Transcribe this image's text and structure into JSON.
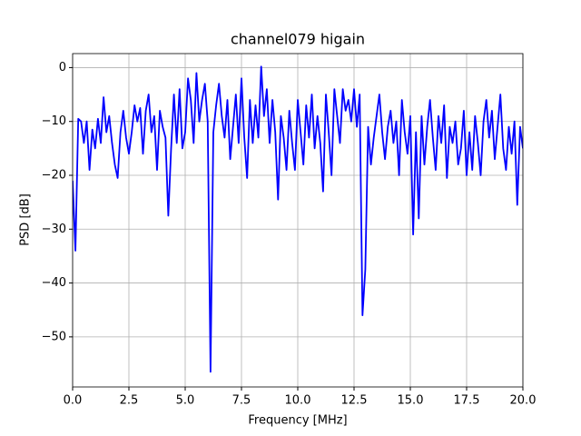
{
  "chart_data": {
    "type": "line",
    "title": "channel079 higain",
    "xlabel": "Frequency [MHz]",
    "ylabel": "PSD [dB]",
    "x": [
      0,
      0.125,
      0.25,
      0.375,
      0.5,
      0.625,
      0.75,
      0.875,
      1,
      1.125,
      1.25,
      1.375,
      1.5,
      1.625,
      1.75,
      1.875,
      2,
      2.125,
      2.25,
      2.375,
      2.5,
      2.625,
      2.75,
      2.875,
      3,
      3.125,
      3.25,
      3.375,
      3.5,
      3.625,
      3.75,
      3.875,
      4,
      4.125,
      4.25,
      4.375,
      4.5,
      4.625,
      4.75,
      4.875,
      5,
      5.125,
      5.25,
      5.375,
      5.5,
      5.625,
      5.75,
      5.875,
      6,
      6.125,
      6.25,
      6.375,
      6.5,
      6.625,
      6.75,
      6.875,
      7,
      7.125,
      7.25,
      7.375,
      7.5,
      7.625,
      7.75,
      7.875,
      8,
      8.125,
      8.25,
      8.375,
      8.5,
      8.625,
      8.75,
      8.875,
      9,
      9.125,
      9.25,
      9.375,
      9.5,
      9.625,
      9.75,
      9.875,
      10,
      10.125,
      10.25,
      10.375,
      10.5,
      10.625,
      10.75,
      10.875,
      11,
      11.125,
      11.25,
      11.375,
      11.5,
      11.625,
      11.75,
      11.875,
      12,
      12.125,
      12.25,
      12.375,
      12.5,
      12.625,
      12.75,
      12.875,
      13,
      13.125,
      13.25,
      13.375,
      13.5,
      13.625,
      13.75,
      13.875,
      14,
      14.125,
      14.25,
      14.375,
      14.5,
      14.625,
      14.75,
      14.875,
      15,
      15.125,
      15.25,
      15.375,
      15.5,
      15.625,
      15.75,
      15.875,
      16,
      16.125,
      16.25,
      16.375,
      16.5,
      16.625,
      16.75,
      16.875,
      17,
      17.125,
      17.25,
      17.375,
      17.5,
      17.625,
      17.75,
      17.875,
      18,
      18.125,
      18.25,
      18.375,
      18.5,
      18.625,
      18.75,
      18.875,
      19,
      19.125,
      19.25,
      19.375,
      19.5,
      19.625,
      19.75,
      19.875,
      20
    ],
    "series": [
      {
        "name": "PSD",
        "color": "#0000ff",
        "values": [
          -21,
          -34,
          -9.5,
          -10,
          -14,
          -10,
          -19,
          -11.5,
          -15,
          -9.5,
          -14,
          -5.5,
          -12,
          -9,
          -14,
          -18,
          -20.5,
          -12,
          -8,
          -13,
          -16,
          -12,
          -7,
          -10,
          -7.5,
          -16,
          -8,
          -5,
          -12,
          -9,
          -19,
          -8,
          -11,
          -13,
          -27.5,
          -15,
          -5,
          -14,
          -4,
          -15,
          -12,
          -2,
          -6,
          -14,
          -1,
          -10,
          -6,
          -3,
          -10,
          -56.5,
          -12,
          -7,
          -3,
          -9,
          -13,
          -6,
          -17,
          -11,
          -5,
          -14,
          -2,
          -13,
          -20.5,
          -6,
          -14,
          -7,
          -13,
          0.2,
          -9,
          -4,
          -14,
          -6,
          -12,
          -24.5,
          -9,
          -13,
          -19,
          -8,
          -14,
          -19,
          -6,
          -12,
          -18,
          -7,
          -13,
          -5,
          -15,
          -9,
          -14,
          -23,
          -5,
          -12,
          -20,
          -4,
          -9,
          -14,
          -4,
          -8,
          -6,
          -10,
          -4,
          -11,
          -5,
          -46,
          -37.5,
          -11,
          -18,
          -13,
          -9,
          -5,
          -12,
          -17,
          -11,
          -8,
          -14,
          -10,
          -20,
          -6,
          -12,
          -16,
          -9,
          -31,
          -12,
          -28,
          -9,
          -18,
          -11,
          -6,
          -13,
          -19,
          -9,
          -14,
          -7,
          -20.5,
          -11,
          -14,
          -10,
          -18,
          -15,
          -8,
          -20,
          -12,
          -19,
          -9,
          -14,
          -20,
          -10,
          -6,
          -13,
          -8,
          -17,
          -11,
          -5,
          -15,
          -19,
          -11,
          -16,
          -10,
          -25.5,
          -11,
          -15
        ]
      }
    ],
    "xlim": [
      0,
      20
    ],
    "xticks": [
      {
        "value": 0,
        "label": "0.0"
      },
      {
        "value": 2.5,
        "label": "2.5"
      },
      {
        "value": 5,
        "label": "5.0"
      },
      {
        "value": 7.5,
        "label": "7.5"
      },
      {
        "value": 10,
        "label": "10.0"
      },
      {
        "value": 12.5,
        "label": "12.5"
      },
      {
        "value": 15,
        "label": "15.0"
      },
      {
        "value": 17.5,
        "label": "17.5"
      },
      {
        "value": 20,
        "label": "20.0"
      }
    ],
    "ylim": [
      -59.3,
      2.6
    ],
    "yticks": [
      0,
      {
        "value": -10,
        "label": "−10"
      },
      {
        "value": -20,
        "label": "−20"
      },
      {
        "value": -30,
        "label": "−30"
      },
      {
        "value": -40,
        "label": "−40"
      },
      {
        "value": -50,
        "label": "−50"
      }
    ],
    "grid": true
  }
}
